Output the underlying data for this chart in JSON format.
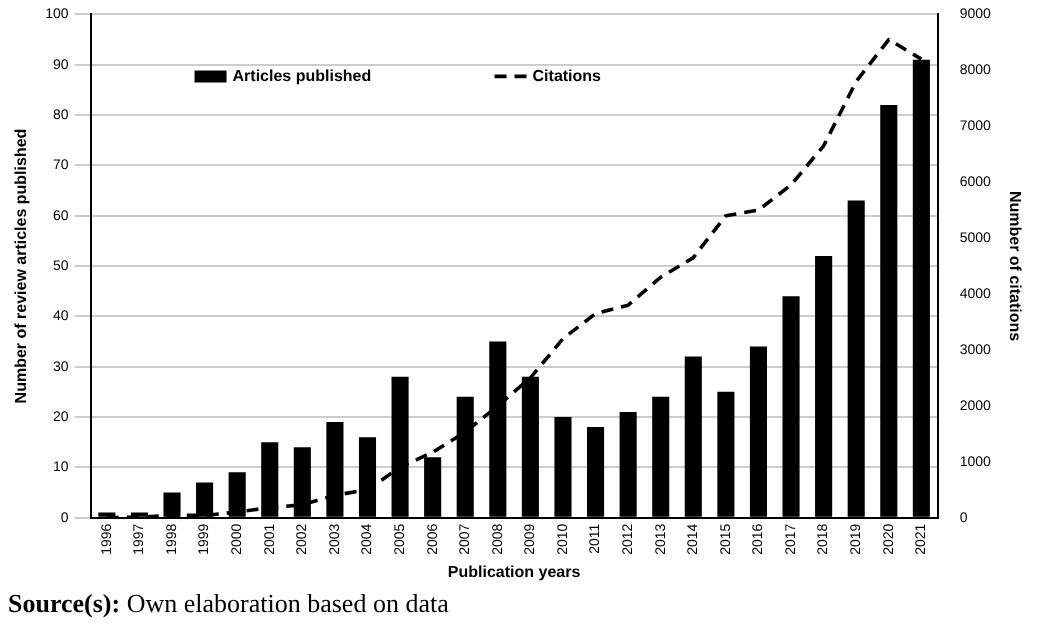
{
  "chart_data": {
    "type": "bar",
    "xlabel": "Publication years",
    "ylabel": "Number of review articles published",
    "y2label": "Number of citations",
    "categories": [
      "1996",
      "1997",
      "1998",
      "1999",
      "2000",
      "2001",
      "2002",
      "2003",
      "2004",
      "2005",
      "2006",
      "2007",
      "2008",
      "2009",
      "2010",
      "2011",
      "2012",
      "2013",
      "2014",
      "2015",
      "2016",
      "2017",
      "2018",
      "2019",
      "2020",
      "2021"
    ],
    "series": [
      {
        "name": "Articles published",
        "color": "#000000",
        "values": [
          1,
          1,
          5,
          7,
          9,
          15,
          14,
          19,
          16,
          28,
          12,
          24,
          35,
          28,
          20,
          18,
          21,
          24,
          32,
          25,
          34,
          44,
          52,
          63,
          82,
          91
        ]
      },
      {
        "name": "Citations",
        "type": "line",
        "axis": "y2",
        "color": "#000000",
        "line_style": "dashed",
        "values": [
          0,
          10,
          40,
          40,
          100,
          180,
          230,
          400,
          500,
          900,
          1170,
          1530,
          2000,
          2500,
          3200,
          3650,
          3800,
          4300,
          4650,
          5400,
          5500,
          5950,
          6650,
          7800,
          8550,
          8200
        ]
      }
    ],
    "ylim": [
      0,
      100
    ],
    "yticks": [
      0,
      10,
      20,
      30,
      40,
      50,
      60,
      70,
      80,
      90,
      100
    ],
    "y2lim": [
      0,
      9000
    ],
    "y2ticks": [
      0,
      1000,
      2000,
      3000,
      4000,
      5000,
      6000,
      7000,
      8000,
      9000
    ],
    "grid": "y",
    "legend": "top",
    "marker": "none",
    "annotations": [
      "Source(s): Own elaboration based on data"
    ]
  }
}
